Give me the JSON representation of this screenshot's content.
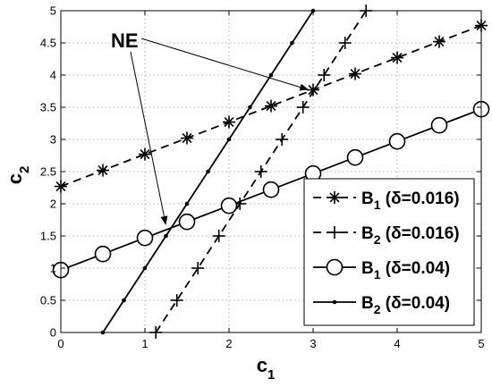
{
  "chart_data": {
    "type": "line",
    "xlabel": {
      "base": "c",
      "sub": "1"
    },
    "ylabel": {
      "base": "c",
      "sub": "2"
    },
    "xlim": [
      0,
      5
    ],
    "ylim": [
      0,
      5
    ],
    "xticks": [
      "0",
      "1",
      "2",
      "3",
      "4",
      "5"
    ],
    "yticks": [
      "0",
      "0.5",
      "1",
      "1.5",
      "2",
      "2.5",
      "3",
      "3.5",
      "4",
      "4.5",
      "5"
    ],
    "grid": true,
    "legend_position": "bottom-right",
    "annotation": {
      "text": "NE",
      "targets": [
        [
          1.26,
          1.6
        ],
        [
          3.0,
          3.75
        ]
      ]
    },
    "series": [
      {
        "name": "B1 (δ=0.016)",
        "label": {
          "base": "B",
          "sub": "1",
          "rest": " (δ=0.016)"
        },
        "marker": "asterisk",
        "dash": "dashed",
        "x": [
          0,
          0.5,
          1,
          1.5,
          2,
          2.5,
          3,
          3.5,
          4,
          4.5,
          5
        ],
        "y": [
          2.27,
          2.52,
          2.77,
          3.02,
          3.27,
          3.52,
          3.77,
          4.02,
          4.27,
          4.52,
          4.77
        ]
      },
      {
        "name": "B2 (δ=0.016)",
        "label": {
          "base": "B",
          "sub": "2",
          "rest": " (δ=0.016)"
        },
        "marker": "plus",
        "dash": "dashed",
        "x": [
          1.13,
          1.38,
          1.63,
          1.88,
          2.13,
          2.38,
          2.63,
          2.88,
          3.13,
          3.38,
          3.63
        ],
        "y": [
          0,
          0.5,
          1,
          1.5,
          2,
          2.5,
          3,
          3.5,
          4,
          4.5,
          5
        ]
      },
      {
        "name": "B1 (δ=0.04)",
        "label": {
          "base": "B",
          "sub": "1",
          "rest": " (δ=0.04)"
        },
        "marker": "circle",
        "dash": "solid",
        "x": [
          0,
          0.5,
          1,
          1.5,
          2,
          2.5,
          3,
          3.5,
          4,
          4.5,
          5
        ],
        "y": [
          0.97,
          1.22,
          1.47,
          1.72,
          1.97,
          2.22,
          2.47,
          2.72,
          2.97,
          3.22,
          3.47
        ]
      },
      {
        "name": "B2 (δ=0.04)",
        "label": {
          "base": "B",
          "sub": "2",
          "rest": " (δ=0.04)"
        },
        "marker": "dot",
        "dash": "solid",
        "x": [
          0.5,
          0.75,
          1,
          1.25,
          1.5,
          1.75,
          2,
          2.25,
          2.5,
          2.75,
          3
        ],
        "y": [
          0,
          0.5,
          1,
          1.5,
          2,
          2.5,
          3,
          3.5,
          4,
          4.5,
          5
        ]
      }
    ]
  }
}
